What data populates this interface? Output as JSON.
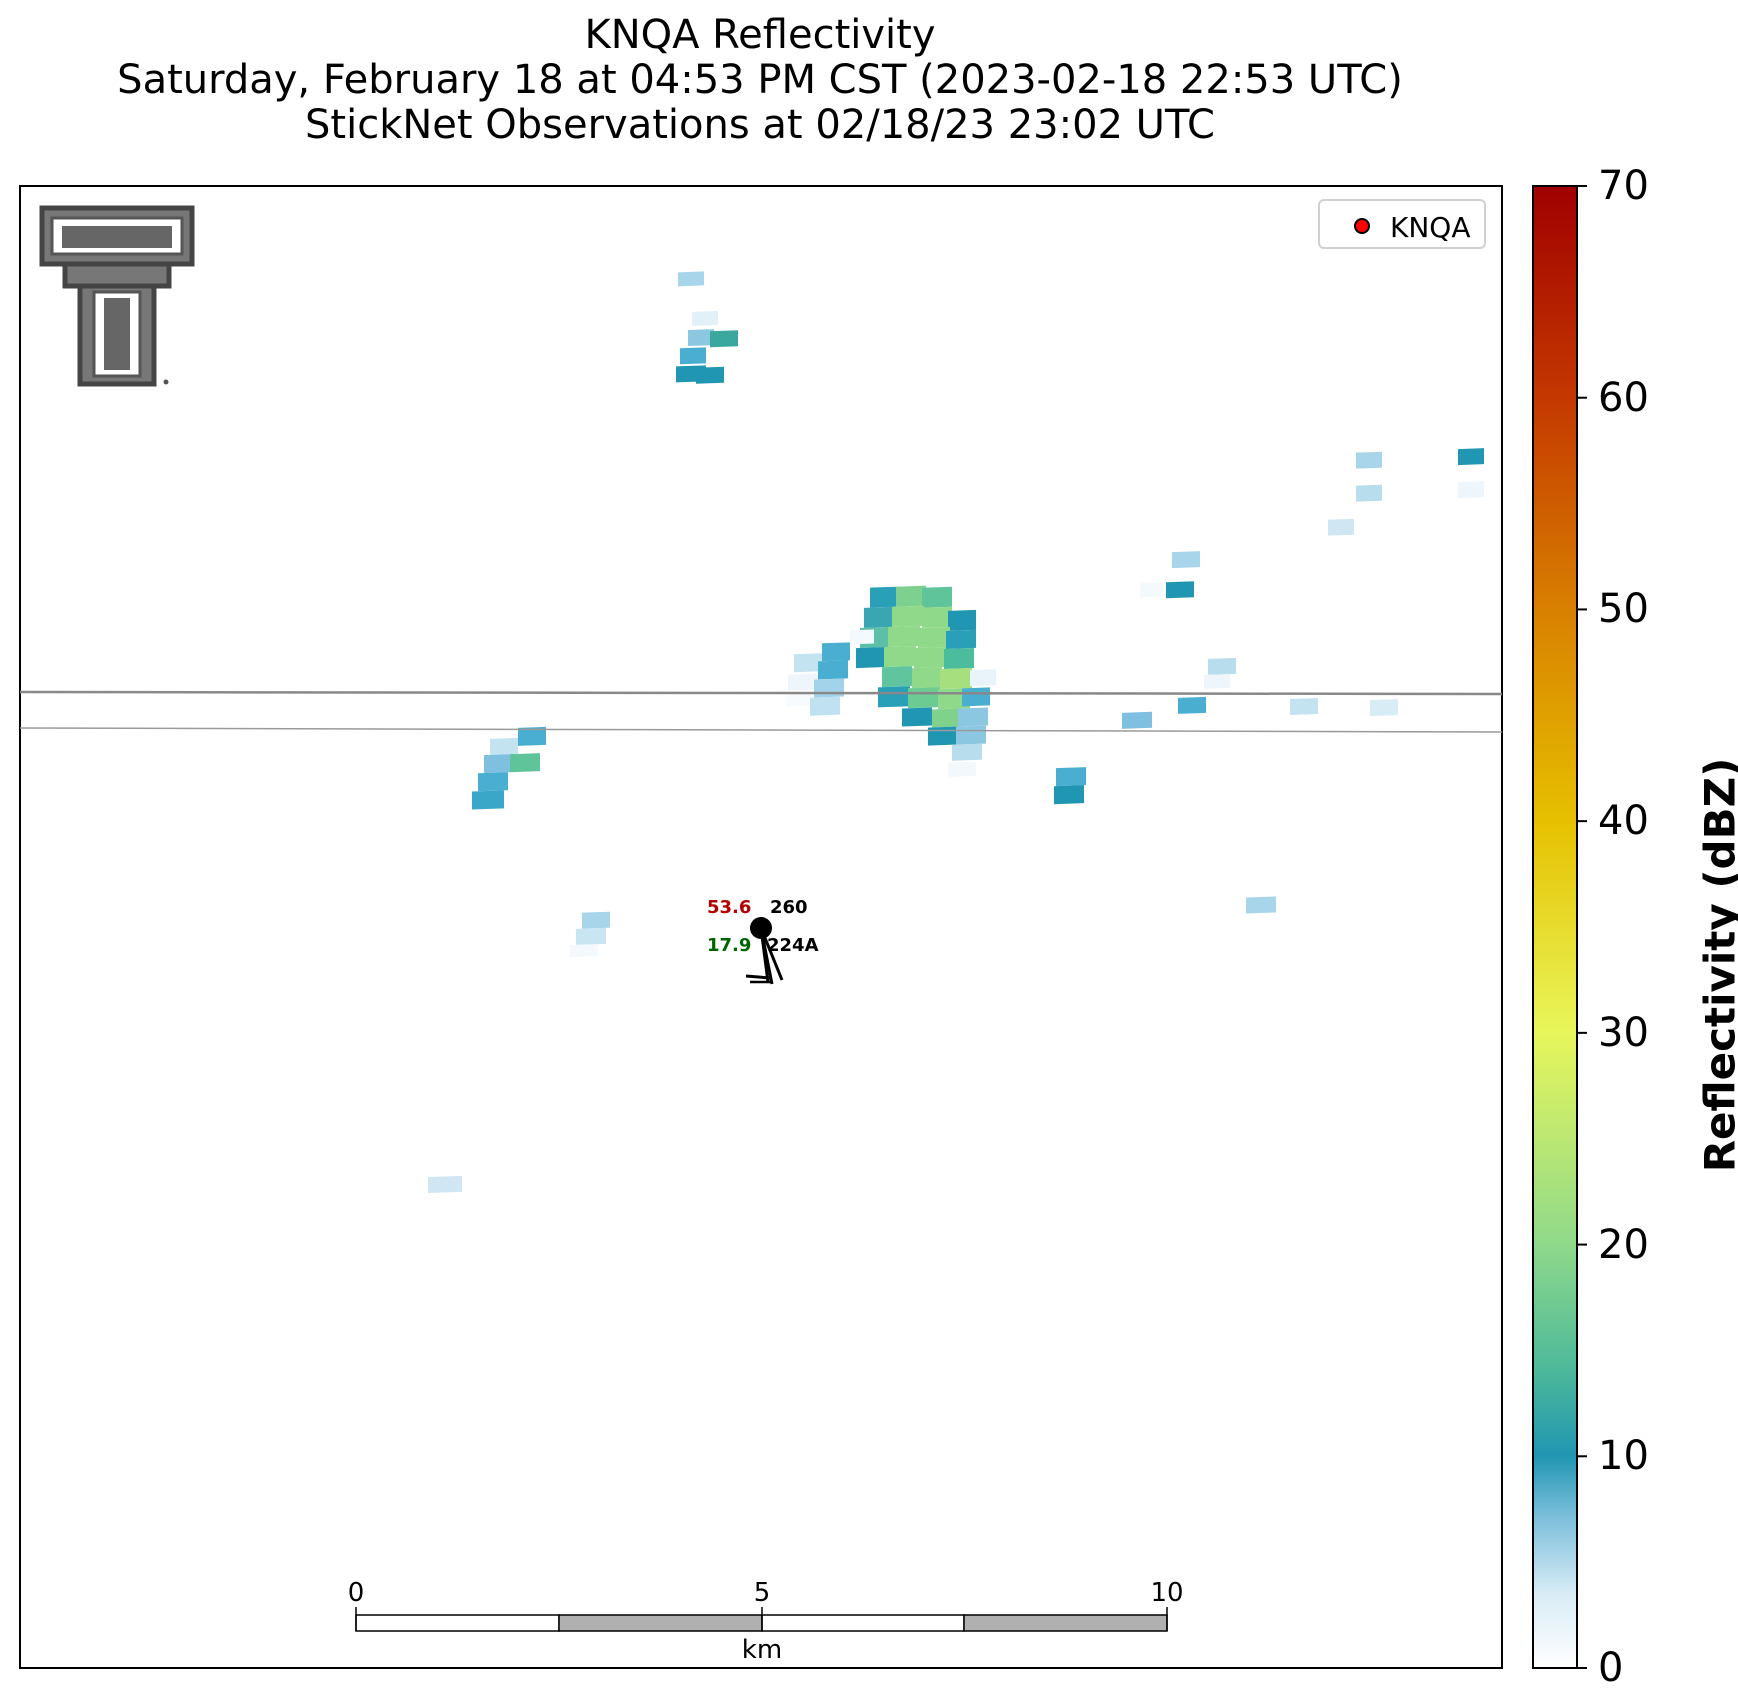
{
  "title": {
    "line1": "KNQA Reflectivity",
    "line2": "Saturday, February 18 at 04:53 PM CST (2023-02-18 22:53 UTC)",
    "line3": "StickNet Observations at 02/18/23 23:02 UTC"
  },
  "legend": {
    "label": "KNQA",
    "marker_color": "#ff0000"
  },
  "colorbar": {
    "label": "Reflectivity (dBZ)",
    "ticks": [
      "0",
      "10",
      "20",
      "30",
      "40",
      "50",
      "60",
      "70"
    ],
    "range": [
      0,
      70
    ],
    "colors": [
      "#ffffff",
      "#9fd0e8",
      "#2196b2",
      "#8fd98a",
      "#e8f65a",
      "#e6c000",
      "#d86a00",
      "#a00000"
    ]
  },
  "scalebar": {
    "labels": [
      "0",
      "5",
      "10"
    ],
    "unit": "km",
    "segments_km": [
      0,
      2.5,
      5,
      7.5,
      10
    ]
  },
  "station": {
    "temperature": "53.6",
    "pressure": "260",
    "dewpoint": "17.9",
    "id": "224A",
    "temperature_color": "#b30000",
    "dewpoint_color": "#006400"
  },
  "logo": {
    "name": "texas-tech-double-t-logo"
  }
}
